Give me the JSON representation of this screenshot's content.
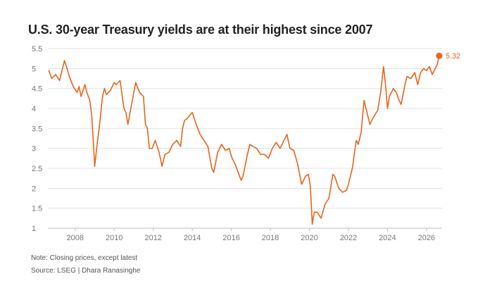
{
  "chart_data": {
    "type": "line",
    "title": "U.S. 30-year Treasury yields are at their highest since 2007",
    "xlabel": "",
    "ylabel": "",
    "xlim": [
      2006.6,
      2026.8
    ],
    "ylim": [
      1,
      5.5
    ],
    "x_ticks": [
      "2008",
      "2010",
      "2012",
      "2014",
      "2016",
      "2018",
      "2020",
      "2022",
      "2024",
      "2026"
    ],
    "y_ticks": [
      "1",
      "1.5",
      "2",
      "2.5",
      "3",
      "3.5",
      "4",
      "4.5",
      "5",
      "5.5"
    ],
    "grid": true,
    "series": [
      {
        "color": "#e8641b",
        "x": [
          2006.65,
          2006.8,
          2007.0,
          2007.2,
          2007.45,
          2007.55,
          2007.7,
          2007.9,
          2008.1,
          2008.2,
          2008.3,
          2008.5,
          2008.6,
          2008.75,
          2008.85,
          2008.95,
          2009.0,
          2009.1,
          2009.25,
          2009.4,
          2009.5,
          2009.6,
          2009.8,
          2010.0,
          2010.1,
          2010.3,
          2010.5,
          2010.6,
          2010.7,
          2010.85,
          2011.0,
          2011.1,
          2011.3,
          2011.5,
          2011.6,
          2011.7,
          2011.8,
          2011.95,
          2012.1,
          2012.3,
          2012.45,
          2012.6,
          2012.8,
          2013.0,
          2013.2,
          2013.4,
          2013.5,
          2013.6,
          2013.75,
          2013.9,
          2014.0,
          2014.2,
          2014.4,
          2014.6,
          2014.8,
          2015.0,
          2015.1,
          2015.3,
          2015.5,
          2015.7,
          2015.9,
          2016.0,
          2016.2,
          2016.5,
          2016.6,
          2016.8,
          2016.95,
          2017.1,
          2017.3,
          2017.5,
          2017.7,
          2017.9,
          2018.1,
          2018.3,
          2018.5,
          2018.7,
          2018.85,
          2019.0,
          2019.2,
          2019.4,
          2019.6,
          2019.8,
          2019.95,
          2020.05,
          2020.15,
          2020.25,
          2020.4,
          2020.6,
          2020.8,
          2021.0,
          2021.2,
          2021.3,
          2021.5,
          2021.7,
          2021.9,
          2022.0,
          2022.2,
          2022.4,
          2022.5,
          2022.65,
          2022.8,
          2022.95,
          2023.1,
          2023.3,
          2023.5,
          2023.65,
          2023.8,
          2023.9,
          2024.0,
          2024.1,
          2024.3,
          2024.45,
          2024.6,
          2024.7,
          2024.9,
          2025.0,
          2025.2,
          2025.4,
          2025.55,
          2025.7,
          2025.85,
          2026.0,
          2026.15,
          2026.3,
          2026.45,
          2026.55,
          2026.65
        ],
        "y": [
          4.95,
          4.75,
          4.85,
          4.7,
          5.2,
          5.05,
          4.8,
          4.55,
          4.4,
          4.55,
          4.3,
          4.6,
          4.4,
          4.2,
          3.8,
          3.0,
          2.55,
          3.0,
          3.6,
          4.3,
          4.5,
          4.35,
          4.45,
          4.65,
          4.6,
          4.7,
          4.0,
          3.9,
          3.6,
          4.0,
          4.4,
          4.65,
          4.4,
          4.3,
          3.6,
          3.5,
          3.0,
          3.0,
          3.2,
          2.9,
          2.55,
          2.85,
          2.9,
          3.1,
          3.2,
          3.05,
          3.5,
          3.7,
          3.75,
          3.85,
          3.9,
          3.6,
          3.35,
          3.2,
          3.05,
          2.5,
          2.4,
          2.9,
          3.1,
          2.95,
          3.0,
          2.8,
          2.6,
          2.2,
          2.3,
          2.8,
          3.1,
          3.05,
          3.0,
          2.85,
          2.85,
          2.75,
          3.0,
          3.15,
          3.0,
          3.2,
          3.35,
          3.0,
          2.95,
          2.6,
          2.1,
          2.3,
          2.35,
          2.05,
          1.1,
          1.4,
          1.4,
          1.25,
          1.6,
          1.75,
          2.35,
          2.3,
          2.0,
          1.9,
          1.95,
          2.1,
          2.5,
          3.2,
          3.1,
          3.4,
          4.2,
          3.9,
          3.6,
          3.8,
          3.95,
          4.4,
          5.05,
          4.6,
          4.0,
          4.3,
          4.5,
          4.4,
          4.2,
          4.1,
          4.6,
          4.8,
          4.75,
          4.9,
          4.6,
          4.9,
          5.0,
          4.95,
          5.05,
          4.85,
          5.0,
          5.1,
          5.32
        ]
      }
    ],
    "annotations": [
      {
        "text": "5.32",
        "x": 2026.65,
        "y": 5.32
      }
    ]
  },
  "footer": {
    "note": "Note: Closing prices, except latest",
    "source": "Source: LSEG | Dhara Ranasinghe"
  }
}
